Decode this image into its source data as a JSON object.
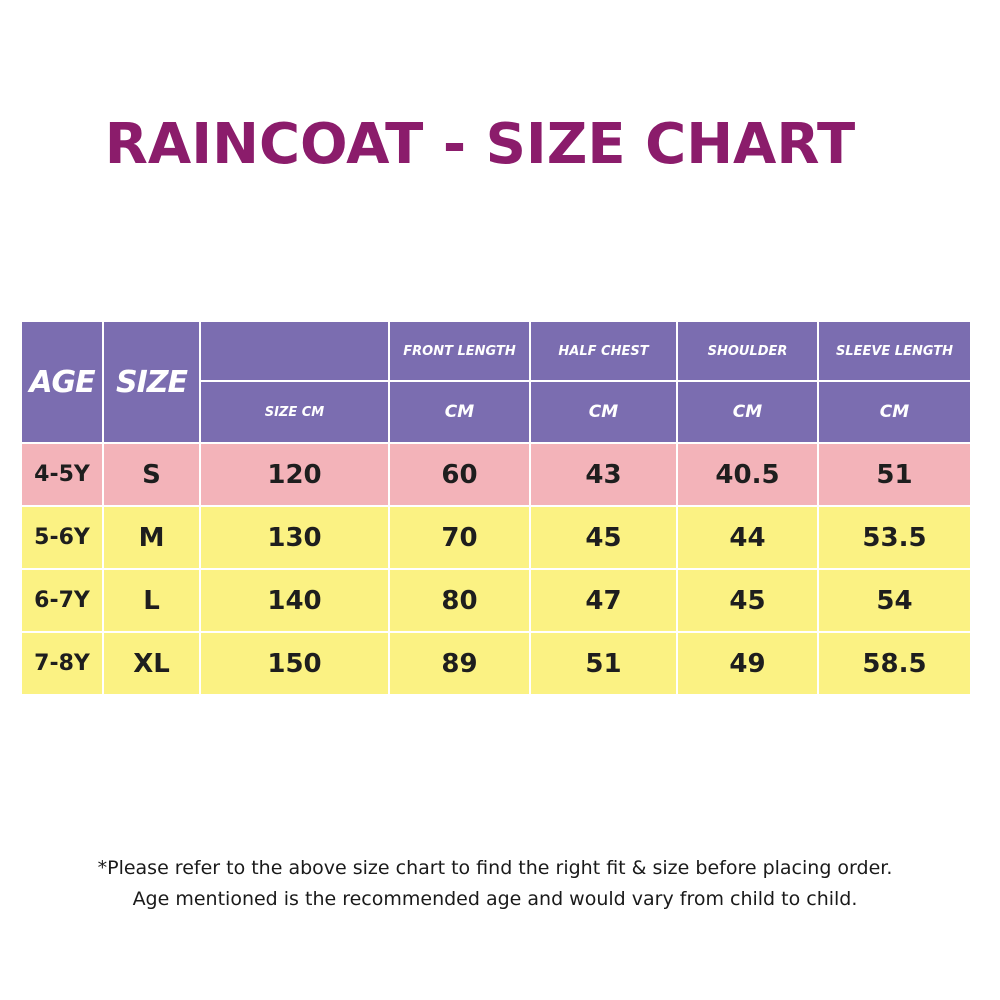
{
  "title": "RAINCOAT - SIZE CHART",
  "colors": {
    "title": "#8b1c6b",
    "header_bg": "#7b6db0",
    "first_row_bg": "#f3b3b9",
    "other_rows_bg": "#fbf283"
  },
  "table": {
    "headers": {
      "age": "AGE",
      "size": "SIZE",
      "size_cm": "SIZE CM",
      "front_length": "FRONT LENGTH",
      "half_chest": "HALF CHEST",
      "shoulder": "SHOULDER",
      "sleeve_length": "SLEEVE LENGTH",
      "unit": "CM"
    },
    "rows": [
      {
        "age": "4-5Y",
        "size": "S",
        "size_cm": "120",
        "front_length": "60",
        "half_chest": "43",
        "shoulder": "40.5",
        "sleeve_length": "51"
      },
      {
        "age": "5-6Y",
        "size": "M",
        "size_cm": "130",
        "front_length": "70",
        "half_chest": "45",
        "shoulder": "44",
        "sleeve_length": "53.5"
      },
      {
        "age": "6-7Y",
        "size": "L",
        "size_cm": "140",
        "front_length": "80",
        "half_chest": "47",
        "shoulder": "45",
        "sleeve_length": "54"
      },
      {
        "age": "7-8Y",
        "size": "XL",
        "size_cm": "150",
        "front_length": "89",
        "half_chest": "51",
        "shoulder": "49",
        "sleeve_length": "58.5"
      }
    ]
  },
  "footnote": {
    "line1": "*Please refer to the above size chart to find the right fit & size before placing order.",
    "line2": "Age mentioned is the recommended age and would vary from child to child."
  }
}
